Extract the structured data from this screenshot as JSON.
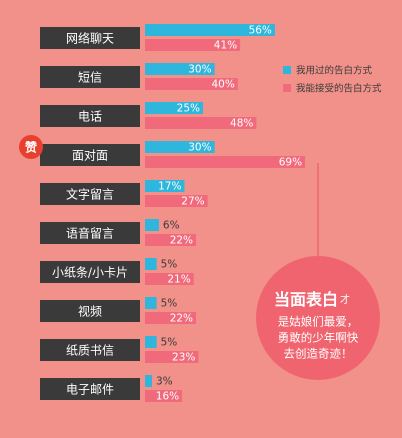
{
  "chart_data": {
    "type": "bar",
    "categories": [
      "网络聊天",
      "短信",
      "电话",
      "面对面",
      "文字留言",
      "语音留言",
      "小纸条/小卡片",
      "视频",
      "纸质书信",
      "电子邮件"
    ],
    "series": [
      {
        "name": "我用过的告白方式",
        "color": "#2fb6dc",
        "values": [
          56,
          30,
          25,
          30,
          17,
          6,
          5,
          5,
          5,
          3
        ],
        "value_labels": [
          "56%",
          "30%",
          "25%",
          "30%",
          "17%",
          "6%",
          "5%",
          "5%",
          "5%",
          "3%"
        ]
      },
      {
        "name": "我能接受的告白方式",
        "color": "#f16a7c",
        "values": [
          41,
          40,
          48,
          69,
          27,
          22,
          21,
          22,
          23,
          16
        ],
        "value_labels": [
          "41%",
          "40%",
          "48%",
          "69%",
          "27%",
          "22%",
          "21%",
          "22%",
          "23%",
          "16%"
        ]
      }
    ],
    "legend": "upper-right",
    "badge": "赞",
    "annotation": {
      "emphasis": "当面表白",
      "suffix": "才",
      "lines": [
        "是姑娘们最爱，",
        "勇敢的少年啊快",
        "去创造奇迹！"
      ]
    }
  }
}
